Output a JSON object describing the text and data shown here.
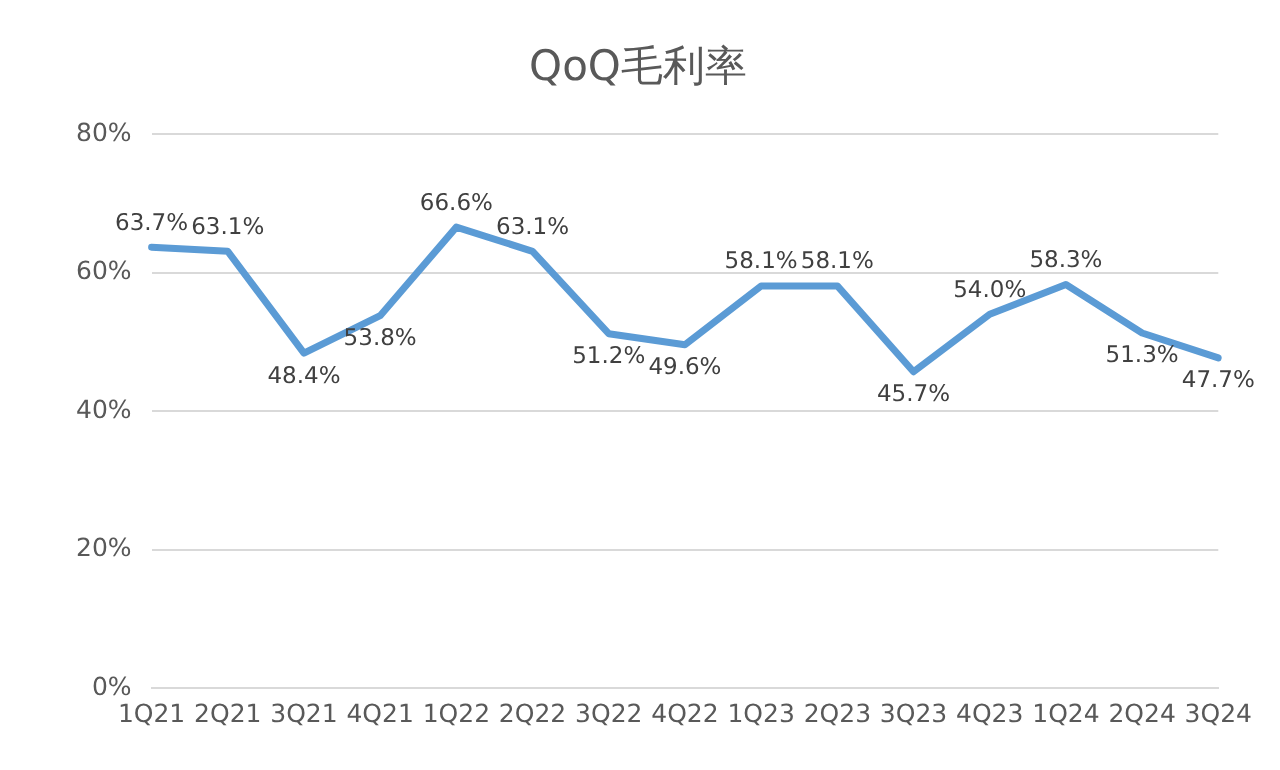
{
  "chart_data": {
    "type": "line",
    "title": "QoQ毛利率",
    "categories": [
      "1Q21",
      "2Q21",
      "3Q21",
      "4Q21",
      "1Q22",
      "2Q22",
      "3Q22",
      "4Q22",
      "1Q23",
      "2Q23",
      "3Q23",
      "4Q23",
      "1Q24",
      "2Q24",
      "3Q24"
    ],
    "series": [
      {
        "color": "#5b9bd5",
        "values": [
          63.7,
          63.1,
          48.4,
          53.8,
          66.6,
          63.1,
          51.2,
          49.6,
          58.1,
          58.1,
          45.7,
          54.0,
          58.3,
          51.3,
          47.7
        ],
        "value_labels": [
          "63.7%",
          "63.1%",
          "48.4%",
          "53.8%",
          "66.6%",
          "63.1%",
          "51.2%",
          "49.6%",
          "58.1%",
          "58.1%",
          "45.7%",
          "54.0%",
          "58.3%",
          "51.3%",
          "47.7%"
        ]
      }
    ],
    "ylim": [
      0,
      80
    ],
    "yticks": [
      {
        "value": 0,
        "label": "0%"
      },
      {
        "value": 20,
        "label": "20%"
      },
      {
        "value": 40,
        "label": "40%"
      },
      {
        "value": 60,
        "label": "60%"
      },
      {
        "value": 80,
        "label": "80%"
      }
    ],
    "grid": "y",
    "legend": false,
    "marker": "none",
    "line_style": "solid"
  }
}
